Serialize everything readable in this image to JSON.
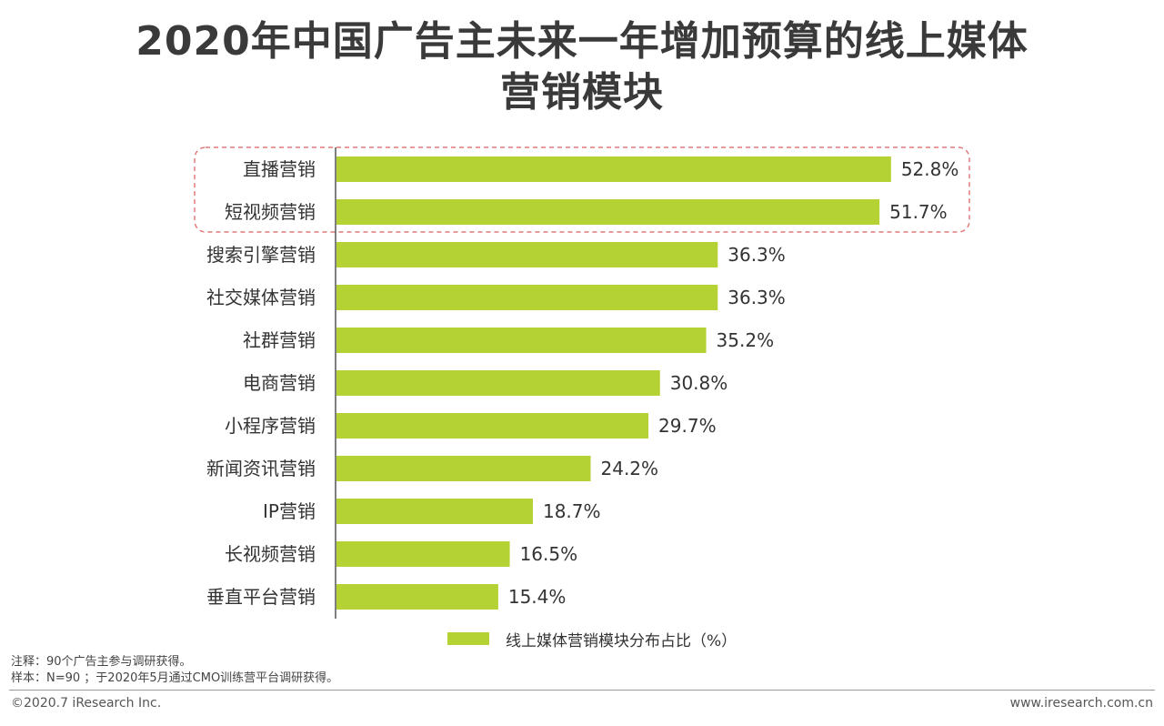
{
  "title_line1": "2020年中国广告主未来一年增加预算的线上媒体",
  "title_line2": "营销模块",
  "chart_data": {
    "type": "bar",
    "orientation": "horizontal",
    "categories": [
      "直播营销",
      "短视频营销",
      "搜索引擎营销",
      "社交媒体营销",
      "社群营销",
      "电商营销",
      "小程序营销",
      "新闻资讯营销",
      "IP营销",
      "长视频营销",
      "垂直平台营销"
    ],
    "series": [
      {
        "name": "线上媒体营销模块分布占比（%）",
        "values": [
          52.8,
          51.7,
          36.3,
          36.3,
          35.2,
          30.8,
          29.7,
          24.2,
          18.7,
          16.5,
          15.4
        ]
      }
    ],
    "value_labels": [
      "52.8%",
      "51.7%",
      "36.3%",
      "36.3%",
      "35.2%",
      "30.8%",
      "29.7%",
      "24.2%",
      "18.7%",
      "16.5%",
      "15.4%"
    ],
    "highlighted_categories": [
      "直播营销",
      "短视频营销"
    ],
    "legend_position": "bottom",
    "grid": false,
    "bar_color": "#b4d234",
    "highlight_border_color": "#e07a7a"
  },
  "legend_label": "线上媒体营销模块分布占比（%）",
  "notes": {
    "note1": "注释：90个广告主参与调研获得。",
    "note2": "样本：N=90 ；于2020年5月通过CMO训练营平台调研获得。"
  },
  "footer": {
    "copyright": "©2020.7 iResearch Inc.",
    "website": "www.iresearch.com.cn"
  }
}
